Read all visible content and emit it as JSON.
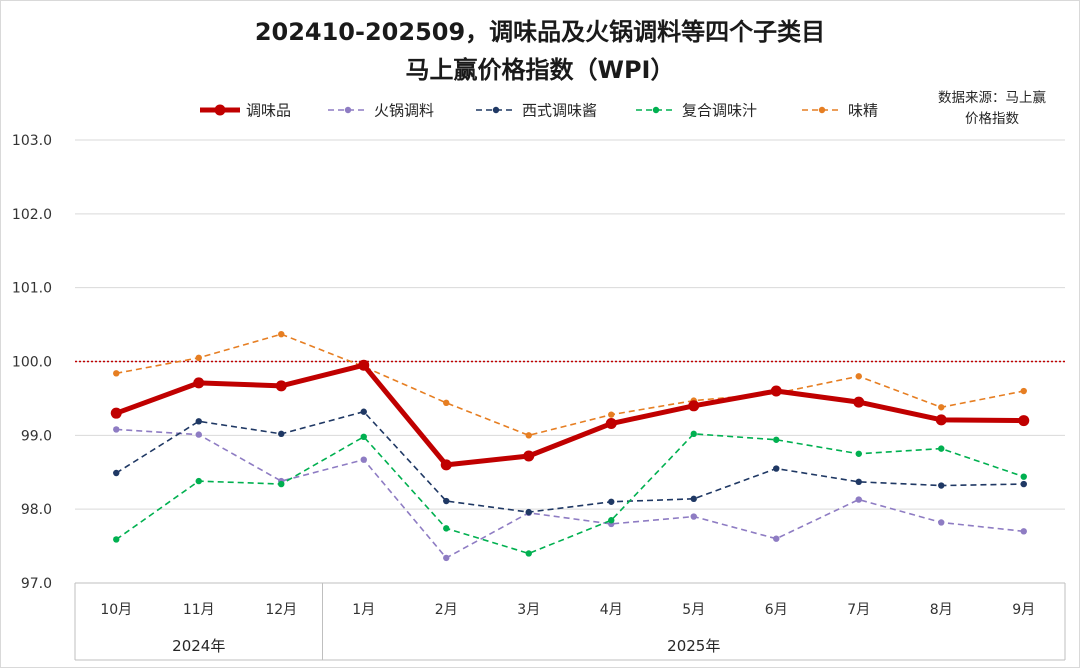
{
  "title_line1": "202410-202509，调味品及火锅调料等四个子类目",
  "title_line2": "马上赢价格指数（WPI）",
  "source_line1": "数据来源：马上赢",
  "source_line2": "价格指数",
  "chart_data": {
    "type": "line",
    "categories": [
      "10月",
      "11月",
      "12月",
      "1月",
      "2月",
      "3月",
      "4月",
      "5月",
      "6月",
      "7月",
      "8月",
      "9月"
    ],
    "year_groups": [
      {
        "label": "2024年",
        "count": 3
      },
      {
        "label": "2025年",
        "count": 9
      }
    ],
    "ylim": [
      97.0,
      103.0
    ],
    "yticks": [
      "97.0",
      "98.0",
      "99.0",
      "100.0",
      "101.0",
      "102.0",
      "103.0"
    ],
    "grid": true,
    "reference_line": {
      "value": 100.0,
      "color": "#c00000",
      "style": "dotted"
    },
    "legend_position": "top",
    "series": [
      {
        "name": "调味品",
        "color": "#c00000",
        "style": "solid-thick",
        "values": [
          99.3,
          99.71,
          99.67,
          99.95,
          98.6,
          98.72,
          99.16,
          99.4,
          99.6,
          99.45,
          99.21,
          99.2
        ]
      },
      {
        "name": "火锅调料",
        "color": "#8e7cc3",
        "style": "dashed",
        "values": [
          99.08,
          99.01,
          98.38,
          98.67,
          97.34,
          97.95,
          97.8,
          97.9,
          97.6,
          98.13,
          97.82,
          97.7
        ]
      },
      {
        "name": "西式调味酱",
        "color": "#1f3864",
        "style": "dashed",
        "values": [
          98.49,
          99.19,
          99.02,
          99.32,
          98.11,
          97.96,
          98.1,
          98.14,
          98.55,
          98.37,
          98.32,
          98.34
        ]
      },
      {
        "name": "复合调味汁",
        "color": "#00b050",
        "style": "dashed",
        "values": [
          97.59,
          98.38,
          98.34,
          98.98,
          97.74,
          97.4,
          97.85,
          99.02,
          98.94,
          98.75,
          98.82,
          98.44
        ]
      },
      {
        "name": "味精",
        "color": "#e67e22",
        "style": "dashed",
        "values": [
          99.84,
          100.05,
          100.37,
          99.93,
          99.44,
          99.0,
          99.28,
          99.47,
          99.57,
          99.8,
          99.38,
          99.6
        ]
      }
    ]
  }
}
